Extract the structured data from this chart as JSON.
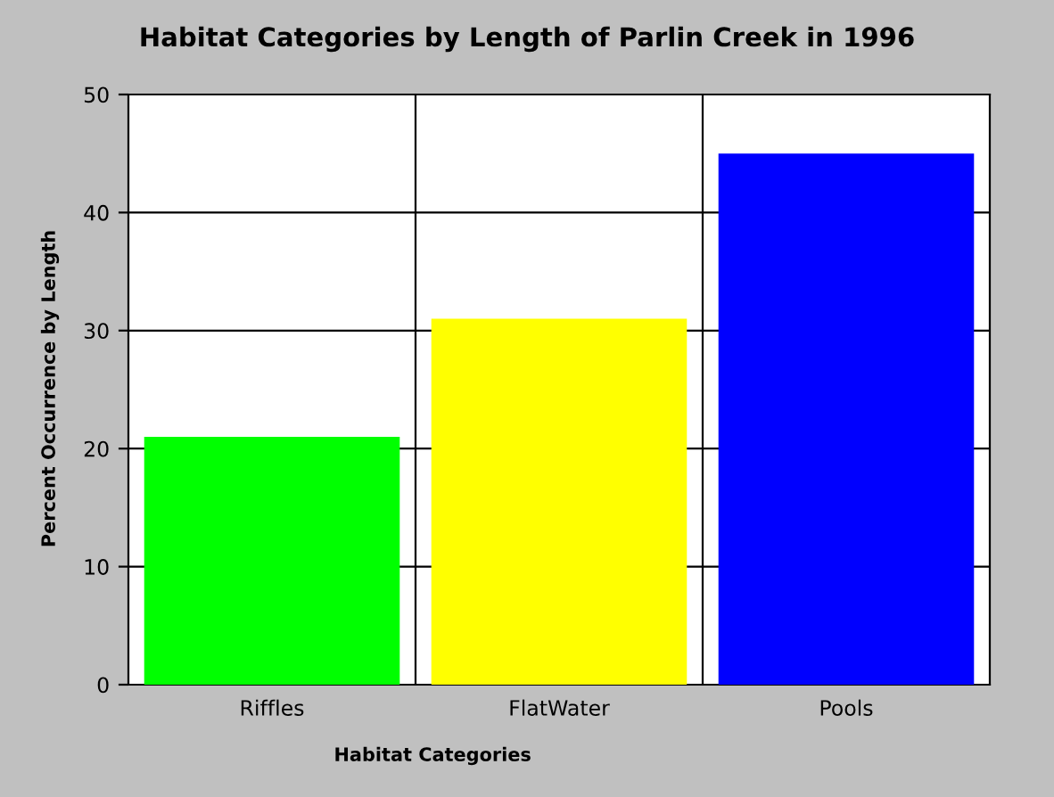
{
  "chart_data": {
    "type": "bar",
    "title": "Habitat Categories by Length of Parlin Creek in 1996",
    "xlabel": "Habitat Categories",
    "ylabel": "Percent Occurrence by Length",
    "categories": [
      "Riffles",
      "FlatWater",
      "Pools"
    ],
    "values": [
      21,
      31,
      45
    ],
    "colors": [
      "#00ff00",
      "#ffff00",
      "#0000ff"
    ],
    "ylim": [
      0,
      50
    ],
    "yticks": [
      0,
      10,
      20,
      30,
      40,
      50
    ],
    "grid": true,
    "legend": false
  }
}
